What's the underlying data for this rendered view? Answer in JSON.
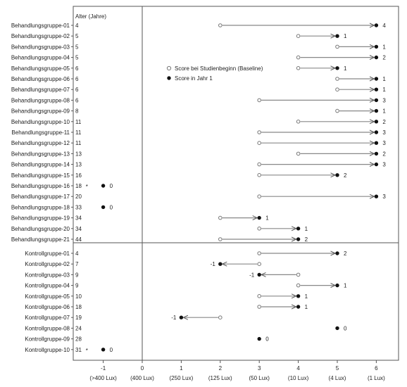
{
  "chart_data": {
    "type": "scatter",
    "age_header": "Alter (Jahre)",
    "legend": {
      "position": "upper-middle",
      "baseline_label": "Score bei Studienbeginn (Baseline)",
      "year1_label": "Score in Jahr 1"
    },
    "xlim": [
      -1.5,
      6.5
    ],
    "x_ticks": [
      {
        "value": -1,
        "label": "-1",
        "lux": "(>400 Lux)"
      },
      {
        "value": 0,
        "label": "0",
        "lux": "(400 Lux)"
      },
      {
        "value": 1,
        "label": "1",
        "lux": "(250 Lux)"
      },
      {
        "value": 2,
        "label": "2",
        "lux": "(125 Lux)"
      },
      {
        "value": 3,
        "label": "3",
        "lux": "(50 Lux)"
      },
      {
        "value": 4,
        "label": "4",
        "lux": "(10 Lux)"
      },
      {
        "value": 5,
        "label": "5",
        "lux": "(4 Lux)"
      },
      {
        "value": 6,
        "label": "6",
        "lux": "(1 Lux)"
      }
    ],
    "colors": {
      "marker": "#111111",
      "arrow": "#888888",
      "axis": "#555555"
    },
    "groups": [
      {
        "name": "treatment",
        "rows": [
          {
            "label": "Behandlungsgruppe-01",
            "age": "4",
            "baseline": 2,
            "year1": 6,
            "score": "4",
            "star": false
          },
          {
            "label": "Behandlungsgruppe-02",
            "age": "5",
            "baseline": 4,
            "year1": 5,
            "score": "1",
            "star": false
          },
          {
            "label": "Behandlungsgruppe-03",
            "age": "5",
            "baseline": 5,
            "year1": 6,
            "score": "1",
            "star": false
          },
          {
            "label": "Behandlungsgruppe-04",
            "age": "5",
            "baseline": 4,
            "year1": 6,
            "score": "2",
            "star": false
          },
          {
            "label": "Behandlungsgruppe-05",
            "age": "6",
            "baseline": 4,
            "year1": 5,
            "score": "1",
            "star": false
          },
          {
            "label": "Behandlungsgruppe-06",
            "age": "6",
            "baseline": 5,
            "year1": 6,
            "score": "1",
            "star": false
          },
          {
            "label": "Behandlungsgruppe-07",
            "age": "6",
            "baseline": 5,
            "year1": 6,
            "score": "1",
            "star": false
          },
          {
            "label": "Behandlungsgruppe-08",
            "age": "6",
            "baseline": 3,
            "year1": 6,
            "score": "3",
            "star": false
          },
          {
            "label": "Behandlungsgruppe-09",
            "age": "8",
            "baseline": 5,
            "year1": 6,
            "score": "1",
            "star": false
          },
          {
            "label": "Behandlungsgruppe-10",
            "age": "11",
            "baseline": 4,
            "year1": 6,
            "score": "2",
            "star": false
          },
          {
            "label": "Behandlungsgruppe-11",
            "age": "11",
            "baseline": 3,
            "year1": 6,
            "score": "3",
            "star": false
          },
          {
            "label": "Behandlungsgruppe-12",
            "age": "11",
            "baseline": 3,
            "year1": 6,
            "score": "3",
            "star": false
          },
          {
            "label": "Behandlungsgruppe-13",
            "age": "13",
            "baseline": 4,
            "year1": 6,
            "score": "2",
            "star": false
          },
          {
            "label": "Behandlungsgruppe-14",
            "age": "13",
            "baseline": 3,
            "year1": 6,
            "score": "3",
            "star": false
          },
          {
            "label": "Behandlungsgruppe-15",
            "age": "16",
            "baseline": 3,
            "year1": 5,
            "score": "2",
            "star": false
          },
          {
            "label": "Behandlungsgruppe-16",
            "age": "18",
            "baseline": -1,
            "year1": -1,
            "score": "0",
            "star": true
          },
          {
            "label": "Behandlungsgruppe-17",
            "age": "20",
            "baseline": 3,
            "year1": 6,
            "score": "3",
            "star": false
          },
          {
            "label": "Behandlungsgruppe-18",
            "age": "33",
            "baseline": -1,
            "year1": -1,
            "score": "0",
            "star": false
          },
          {
            "label": "Behandlungsgruppe-19",
            "age": "34",
            "baseline": 2,
            "year1": 3,
            "score": "1",
            "star": false
          },
          {
            "label": "Behandlungsgruppe-20",
            "age": "34",
            "baseline": 3,
            "year1": 4,
            "score": "1",
            "star": false
          },
          {
            "label": "Behandlungsgruppe-21",
            "age": "44",
            "baseline": 2,
            "year1": 4,
            "score": "2",
            "star": false
          }
        ]
      },
      {
        "name": "control",
        "rows": [
          {
            "label": "Kontrollgruppe-01",
            "age": "4",
            "baseline": 3,
            "year1": 5,
            "score": "2",
            "star": false
          },
          {
            "label": "Kontrollgruppe-02",
            "age": "7",
            "baseline": 3,
            "year1": 2,
            "score": "-1",
            "star": false
          },
          {
            "label": "Kontrollgruppe-03",
            "age": "9",
            "baseline": 4,
            "year1": 3,
            "score": "-1",
            "star": false
          },
          {
            "label": "Kontrollgruppe-04",
            "age": "9",
            "baseline": 4,
            "year1": 5,
            "score": "1",
            "star": false
          },
          {
            "label": "Kontrollgruppe-05",
            "age": "10",
            "baseline": 3,
            "year1": 4,
            "score": "1",
            "star": false
          },
          {
            "label": "Kontrollgruppe-06",
            "age": "18",
            "baseline": 3,
            "year1": 4,
            "score": "1",
            "star": false
          },
          {
            "label": "Kontrollgruppe-07",
            "age": "19",
            "baseline": 2,
            "year1": 1,
            "score": "-1",
            "star": false
          },
          {
            "label": "Kontrollgruppe-08",
            "age": "24",
            "baseline": 5,
            "year1": 5,
            "score": "0",
            "star": false
          },
          {
            "label": "Kontrollgruppe-09",
            "age": "28",
            "baseline": 3,
            "year1": 3,
            "score": "0",
            "star": false
          },
          {
            "label": "Kontrollgruppe-10",
            "age": "31",
            "baseline": -1,
            "year1": -1,
            "score": "0",
            "star": true
          }
        ]
      }
    ]
  }
}
